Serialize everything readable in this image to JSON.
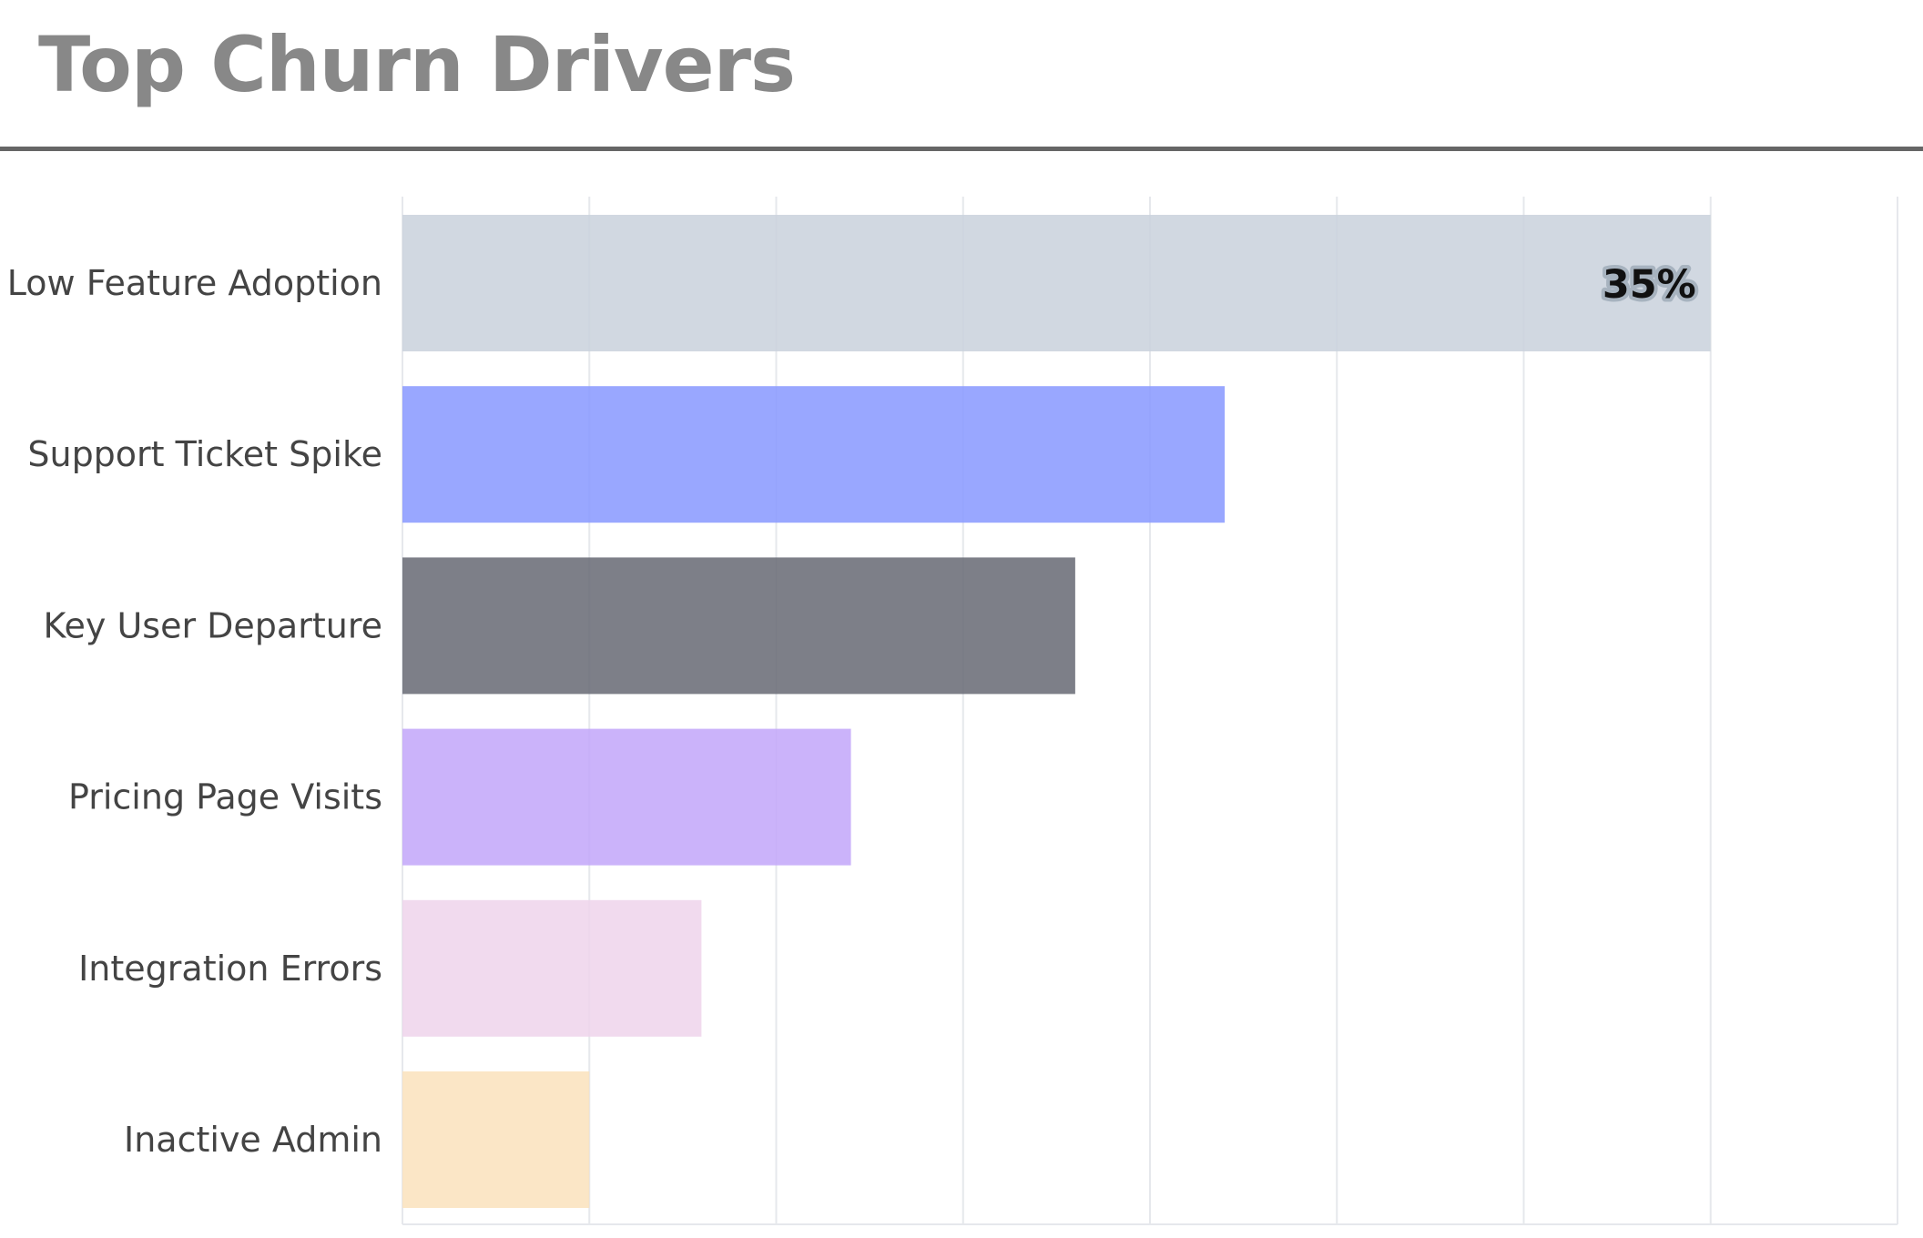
{
  "header": {
    "title": "Top Churn Drivers"
  },
  "chart_data": {
    "type": "bar",
    "orientation": "horizontal",
    "title": "Top Churn Drivers",
    "xlabel": "",
    "ylabel": "",
    "xlim": [
      0,
      40
    ],
    "grid": true,
    "categories": [
      "Low Feature Adoption",
      "Support Ticket Spike",
      "Key User Departure",
      "Pricing Page Visits",
      "Integration Errors",
      "Inactive Admin"
    ],
    "values": [
      35,
      22,
      18,
      12,
      8,
      5
    ],
    "colors": [
      "#c9d2dc",
      "#8899ff",
      "#686a75",
      "#c2a6f9",
      "#efd4eb",
      "#fae2bd"
    ],
    "data_labels": [
      {
        "category": "Low Feature Adoption",
        "text": "35%"
      }
    ]
  }
}
